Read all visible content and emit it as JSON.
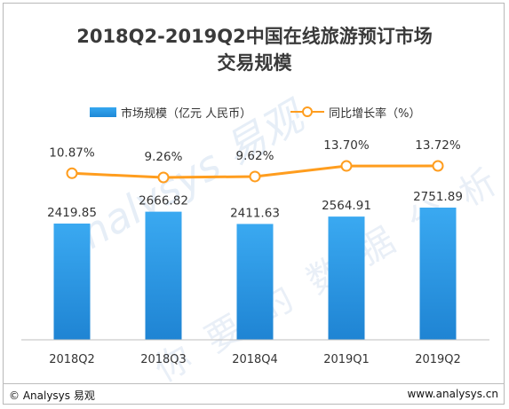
{
  "title_line1": "2018Q2-2019Q2中国在线旅游预订市场",
  "title_line2": "交易规模",
  "footer": {
    "copyright": "© Analysys 易观",
    "website": "www.analysys.cn"
  },
  "watermark": {
    "brand": "Analysys 易观",
    "slogan": "你要的数据分析"
  },
  "colors": {
    "bar": "#1e88d6",
    "line": "#ff9d1e",
    "axis": "#bfbfbf"
  },
  "chart_data": {
    "type": "bar",
    "categories": [
      "2018Q2",
      "2018Q3",
      "2018Q4",
      "2019Q1",
      "2019Q2"
    ],
    "series": [
      {
        "name": "市场规模（亿元 人民币）",
        "type": "bar",
        "values": [
          2419.85,
          2666.82,
          2411.63,
          2564.91,
          2751.89
        ]
      },
      {
        "name": "同比增长率（%）",
        "type": "line",
        "values": [
          10.87,
          9.26,
          9.62,
          13.7,
          13.72
        ]
      }
    ],
    "bar_labels": [
      "2419.85",
      "2666.82",
      "2411.63",
      "2564.91",
      "2751.89"
    ],
    "line_labels": [
      "10.87%",
      "9.26%",
      "9.62%",
      "13.70%",
      "13.72%"
    ],
    "legend": "top",
    "grid": false
  }
}
